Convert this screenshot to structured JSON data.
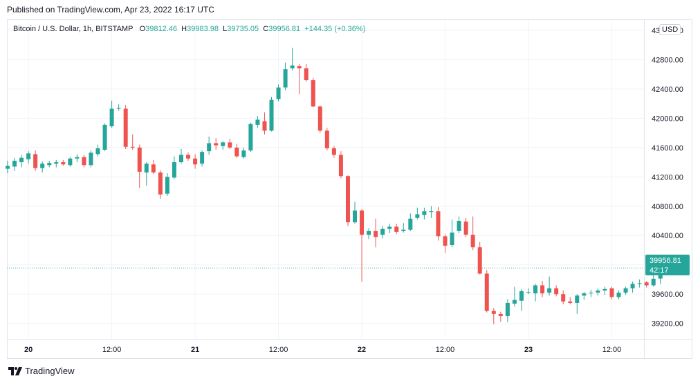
{
  "header": {
    "published": "Published on TradingView.com, Apr 23, 2022 16:17 UTC"
  },
  "legend": {
    "symbol": "Bitcoin / U.S. Dollar, 1h, BITSTAMP",
    "o_label": "O",
    "o_value": "39812.46",
    "h_label": "H",
    "h_value": "39983.98",
    "l_label": "L",
    "l_value": "39735.05",
    "c_label": "C",
    "c_value": "39956.81",
    "change": "+144.35 (+0.36%)"
  },
  "currency": "USD",
  "last_price": {
    "price": "39956.81",
    "countdown": "42:17"
  },
  "brand": "TradingView",
  "colors": {
    "up": "#26a69a",
    "down": "#ef5350",
    "grid": "#f0f3fa",
    "text": "#131722"
  },
  "chart_data": {
    "type": "candlestick",
    "title": "Bitcoin / U.S. Dollar, 1h, BITSTAMP",
    "ylim": [
      38990,
      43340
    ],
    "y_ticks": [
      39200,
      39600,
      40000,
      40400,
      40800,
      41200,
      41600,
      42000,
      42400,
      42800,
      43200
    ],
    "y_tick_labels": [
      "39200.00",
      "39600.00",
      "",
      "40400.00",
      "40800.00",
      "41200.00",
      "41600.00",
      "42000.00",
      "42400.00",
      "42800.00",
      "43200.00"
    ],
    "x_ticks": [
      "20",
      "12:00",
      "21",
      "12:00",
      "22",
      "12:00",
      "23",
      "12:00"
    ],
    "x_tick_index": [
      3,
      15,
      27,
      39,
      51,
      63,
      75,
      87
    ],
    "last_close": 39956.81,
    "candles": [
      {
        "o": 41310,
        "h": 41420,
        "l": 41250,
        "c": 41350
      },
      {
        "o": 41340,
        "h": 41460,
        "l": 41280,
        "c": 41420
      },
      {
        "o": 41400,
        "h": 41500,
        "l": 41330,
        "c": 41460
      },
      {
        "o": 41440,
        "h": 41550,
        "l": 41380,
        "c": 41520
      },
      {
        "o": 41510,
        "h": 41560,
        "l": 41280,
        "c": 41320
      },
      {
        "o": 41320,
        "h": 41410,
        "l": 41260,
        "c": 41380
      },
      {
        "o": 41360,
        "h": 41420,
        "l": 41330,
        "c": 41390
      },
      {
        "o": 41380,
        "h": 41430,
        "l": 41330,
        "c": 41400
      },
      {
        "o": 41400,
        "h": 41430,
        "l": 41350,
        "c": 41370
      },
      {
        "o": 41360,
        "h": 41470,
        "l": 41340,
        "c": 41450
      },
      {
        "o": 41450,
        "h": 41510,
        "l": 41400,
        "c": 41470
      },
      {
        "o": 41470,
        "h": 41500,
        "l": 41330,
        "c": 41360
      },
      {
        "o": 41360,
        "h": 41560,
        "l": 41330,
        "c": 41530
      },
      {
        "o": 41510,
        "h": 41640,
        "l": 41480,
        "c": 41590
      },
      {
        "o": 41570,
        "h": 41930,
        "l": 41550,
        "c": 41910
      },
      {
        "o": 41890,
        "h": 42240,
        "l": 41870,
        "c": 42130
      },
      {
        "o": 42130,
        "h": 42190,
        "l": 42100,
        "c": 42140
      },
      {
        "o": 42130,
        "h": 42180,
        "l": 41580,
        "c": 41610
      },
      {
        "o": 41610,
        "h": 41780,
        "l": 41570,
        "c": 41600
      },
      {
        "o": 41600,
        "h": 41640,
        "l": 41050,
        "c": 41270
      },
      {
        "o": 41260,
        "h": 41400,
        "l": 41080,
        "c": 41380
      },
      {
        "o": 41370,
        "h": 41430,
        "l": 41240,
        "c": 41260
      },
      {
        "o": 41260,
        "h": 41290,
        "l": 40900,
        "c": 40960
      },
      {
        "o": 40970,
        "h": 41250,
        "l": 40940,
        "c": 41200
      },
      {
        "o": 41190,
        "h": 41480,
        "l": 41170,
        "c": 41400
      },
      {
        "o": 41400,
        "h": 41580,
        "l": 41380,
        "c": 41500
      },
      {
        "o": 41500,
        "h": 41530,
        "l": 41420,
        "c": 41450
      },
      {
        "o": 41450,
        "h": 41510,
        "l": 41310,
        "c": 41370
      },
      {
        "o": 41380,
        "h": 41560,
        "l": 41340,
        "c": 41540
      },
      {
        "o": 41550,
        "h": 41750,
        "l": 41500,
        "c": 41660
      },
      {
        "o": 41660,
        "h": 41730,
        "l": 41570,
        "c": 41630
      },
      {
        "o": 41620,
        "h": 41690,
        "l": 41570,
        "c": 41670
      },
      {
        "o": 41670,
        "h": 41720,
        "l": 41580,
        "c": 41600
      },
      {
        "o": 41600,
        "h": 41650,
        "l": 41460,
        "c": 41480
      },
      {
        "o": 41470,
        "h": 41600,
        "l": 41450,
        "c": 41560
      },
      {
        "o": 41560,
        "h": 41940,
        "l": 41540,
        "c": 41920
      },
      {
        "o": 41910,
        "h": 42030,
        "l": 41870,
        "c": 41980
      },
      {
        "o": 41960,
        "h": 42080,
        "l": 41780,
        "c": 41830
      },
      {
        "o": 41830,
        "h": 42290,
        "l": 41820,
        "c": 42250
      },
      {
        "o": 42260,
        "h": 42460,
        "l": 42230,
        "c": 42420
      },
      {
        "o": 42420,
        "h": 42760,
        "l": 42380,
        "c": 42670
      },
      {
        "o": 42680,
        "h": 42960,
        "l": 42650,
        "c": 42720
      },
      {
        "o": 42710,
        "h": 42740,
        "l": 42330,
        "c": 42680
      },
      {
        "o": 42680,
        "h": 42740,
        "l": 42500,
        "c": 42520
      },
      {
        "o": 42520,
        "h": 42550,
        "l": 42150,
        "c": 42160
      },
      {
        "o": 42160,
        "h": 42170,
        "l": 41800,
        "c": 41830
      },
      {
        "o": 41830,
        "h": 41870,
        "l": 41560,
        "c": 41590
      },
      {
        "o": 41590,
        "h": 41620,
        "l": 41460,
        "c": 41500
      },
      {
        "o": 41500,
        "h": 41550,
        "l": 41180,
        "c": 41210
      },
      {
        "o": 41210,
        "h": 41220,
        "l": 40530,
        "c": 40580
      },
      {
        "o": 40580,
        "h": 40860,
        "l": 40560,
        "c": 40740
      },
      {
        "o": 40740,
        "h": 40760,
        "l": 39770,
        "c": 40410
      },
      {
        "o": 40410,
        "h": 40500,
        "l": 40350,
        "c": 40460
      },
      {
        "o": 40460,
        "h": 40630,
        "l": 40240,
        "c": 40380
      },
      {
        "o": 40410,
        "h": 40530,
        "l": 40360,
        "c": 40490
      },
      {
        "o": 40490,
        "h": 40560,
        "l": 40430,
        "c": 40520
      },
      {
        "o": 40520,
        "h": 40560,
        "l": 40420,
        "c": 40450
      },
      {
        "o": 40460,
        "h": 40570,
        "l": 40440,
        "c": 40480
      },
      {
        "o": 40480,
        "h": 40700,
        "l": 40460,
        "c": 40630
      },
      {
        "o": 40640,
        "h": 40780,
        "l": 40620,
        "c": 40690
      },
      {
        "o": 40680,
        "h": 40780,
        "l": 40620,
        "c": 40730
      },
      {
        "o": 40720,
        "h": 40800,
        "l": 40640,
        "c": 40730
      },
      {
        "o": 40730,
        "h": 40790,
        "l": 40330,
        "c": 40390
      },
      {
        "o": 40390,
        "h": 40420,
        "l": 40160,
        "c": 40260
      },
      {
        "o": 40270,
        "h": 40620,
        "l": 40240,
        "c": 40440
      },
      {
        "o": 40460,
        "h": 40660,
        "l": 40430,
        "c": 40600
      },
      {
        "o": 40590,
        "h": 40640,
        "l": 40380,
        "c": 40410
      },
      {
        "o": 40410,
        "h": 40660,
        "l": 40200,
        "c": 40240
      },
      {
        "o": 40240,
        "h": 40310,
        "l": 39870,
        "c": 39880
      },
      {
        "o": 39880,
        "h": 39930,
        "l": 39350,
        "c": 39370
      },
      {
        "o": 39370,
        "h": 39410,
        "l": 39190,
        "c": 39330
      },
      {
        "o": 39330,
        "h": 39360,
        "l": 39220,
        "c": 39300
      },
      {
        "o": 39300,
        "h": 39530,
        "l": 39220,
        "c": 39480
      },
      {
        "o": 39470,
        "h": 39700,
        "l": 39430,
        "c": 39520
      },
      {
        "o": 39510,
        "h": 39670,
        "l": 39370,
        "c": 39640
      },
      {
        "o": 39630,
        "h": 39680,
        "l": 39600,
        "c": 39630
      },
      {
        "o": 39610,
        "h": 39740,
        "l": 39500,
        "c": 39720
      },
      {
        "o": 39720,
        "h": 39780,
        "l": 39560,
        "c": 39610
      },
      {
        "o": 39620,
        "h": 39840,
        "l": 39580,
        "c": 39680
      },
      {
        "o": 39680,
        "h": 39720,
        "l": 39570,
        "c": 39600
      },
      {
        "o": 39600,
        "h": 39650,
        "l": 39460,
        "c": 39500
      },
      {
        "o": 39500,
        "h": 39560,
        "l": 39460,
        "c": 39480
      },
      {
        "o": 39480,
        "h": 39600,
        "l": 39330,
        "c": 39580
      },
      {
        "o": 39580,
        "h": 39630,
        "l": 39520,
        "c": 39610
      },
      {
        "o": 39610,
        "h": 39660,
        "l": 39560,
        "c": 39620
      },
      {
        "o": 39620,
        "h": 39680,
        "l": 39580,
        "c": 39650
      },
      {
        "o": 39650,
        "h": 39700,
        "l": 39590,
        "c": 39670
      },
      {
        "o": 39680,
        "h": 39700,
        "l": 39530,
        "c": 39560
      },
      {
        "o": 39560,
        "h": 39650,
        "l": 39530,
        "c": 39620
      },
      {
        "o": 39620,
        "h": 39700,
        "l": 39590,
        "c": 39680
      },
      {
        "o": 39680,
        "h": 39770,
        "l": 39620,
        "c": 39740
      },
      {
        "o": 39740,
        "h": 39800,
        "l": 39690,
        "c": 39750
      },
      {
        "o": 39760,
        "h": 39780,
        "l": 39690,
        "c": 39720
      },
      {
        "o": 39720,
        "h": 39880,
        "l": 39700,
        "c": 39810
      },
      {
        "o": 39812.46,
        "h": 39983.98,
        "l": 39735.05,
        "c": 39956.81
      }
    ]
  }
}
